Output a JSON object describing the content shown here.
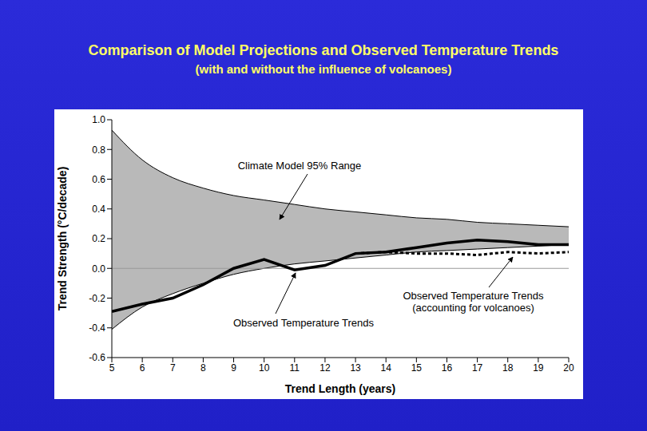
{
  "chart_data": {
    "type": "line",
    "title": "Comparison of Model Projections and Observed Temperature Trends",
    "subtitle": "(with and without the influence of volcanoes)",
    "x_label": "Trend Length (years)",
    "y_label": "Trend Strength (°C/decade)",
    "x": [
      5,
      6,
      7,
      8,
      9,
      10,
      11,
      12,
      13,
      14,
      15,
      16,
      17,
      18,
      19,
      20
    ],
    "xlim": [
      5,
      20
    ],
    "xticks": [
      5,
      6,
      7,
      8,
      9,
      10,
      11,
      12,
      13,
      14,
      15,
      16,
      17,
      18,
      19,
      20
    ],
    "ylim": [
      -0.6,
      1.0
    ],
    "yticks": [
      {
        "value": -0.6,
        "label": "-0.6"
      },
      {
        "value": -0.4,
        "label": "-0.4"
      },
      {
        "value": -0.2,
        "label": "-0.2"
      },
      {
        "value": 0,
        "label": "0.0"
      },
      {
        "value": 0.2,
        "label": "0.2"
      },
      {
        "value": 0.4,
        "label": "0.4"
      },
      {
        "value": 0.6,
        "label": "0.6"
      },
      {
        "value": 0.8,
        "label": "0.8"
      },
      {
        "value": 1.0,
        "label": "1.0"
      }
    ],
    "grid": false,
    "baseline": 0,
    "series": [
      {
        "name": "Climate Model 95% Range",
        "type": "area",
        "color": "#b9b9b9",
        "lower": [
          -0.41,
          -0.26,
          -0.17,
          -0.1,
          -0.04,
          0.0,
          0.03,
          0.05,
          0.07,
          0.09,
          0.11,
          0.12,
          0.13,
          0.14,
          0.15,
          0.16
        ],
        "upper": [
          0.93,
          0.73,
          0.61,
          0.54,
          0.49,
          0.46,
          0.43,
          0.4,
          0.38,
          0.36,
          0.34,
          0.33,
          0.31,
          0.3,
          0.29,
          0.28
        ]
      },
      {
        "name": "Observed Temperature Trends",
        "type": "line",
        "color": "#000000",
        "line_style": "solid",
        "values": [
          -0.29,
          -0.24,
          -0.2,
          -0.11,
          0.0,
          0.06,
          -0.01,
          0.02,
          0.1,
          0.11,
          0.14,
          0.17,
          0.19,
          0.18,
          0.16,
          0.16
        ]
      },
      {
        "name": "Observed Temperature Trends (accounting for volcanoes)",
        "type": "line",
        "color": "#000000",
        "line_style": "dashed",
        "values": [
          null,
          null,
          null,
          null,
          null,
          null,
          null,
          null,
          0.1,
          0.11,
          0.1,
          0.1,
          0.09,
          0.11,
          0.1,
          0.11
        ]
      }
    ]
  }
}
